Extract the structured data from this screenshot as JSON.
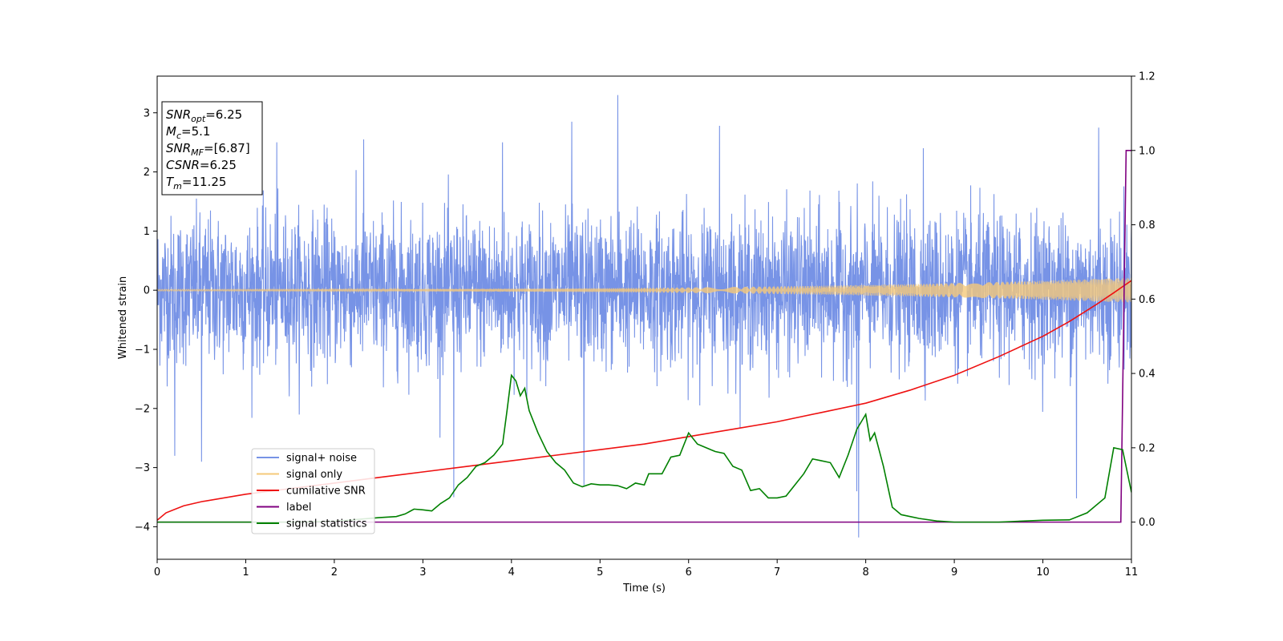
{
  "chart_data": {
    "type": "line",
    "xlabel": "Time (s)",
    "ylabel": "Whitened strain",
    "xlim": [
      0,
      11
    ],
    "ylim": [
      -4.55,
      3.62
    ],
    "y2lim": [
      -0.1,
      1.2
    ],
    "xticks": [
      "0",
      "1",
      "2",
      "3",
      "4",
      "5",
      "6",
      "7",
      "8",
      "9",
      "10",
      "11"
    ],
    "yticks": [
      "−4",
      "−3",
      "−2",
      "−1",
      "0",
      "1",
      "2",
      "3"
    ],
    "y2ticks": [
      "0.0",
      "0.2",
      "0.4",
      "0.6",
      "0.8",
      "1.0",
      "1.2"
    ],
    "legend_position": "lower-left",
    "annotation": {
      "lines": [
        {
          "sym": "SNR",
          "sub": "opt",
          "value": "=6.25"
        },
        {
          "sym": "M",
          "sub": "c",
          "value": "=5.1"
        },
        {
          "sym": "SNR",
          "sub": "MF",
          "value": "=[6.87]"
        },
        {
          "sym": "CSNR",
          "sub": "",
          "value": "=6.25"
        },
        {
          "sym": "T",
          "sub": "m",
          "value": "=11.25"
        }
      ]
    },
    "series": [
      {
        "name": "signal+ noise",
        "color": "#7793e6",
        "axis": "left",
        "kind": "noise",
        "spread": 1.3,
        "extremes": [
          [
            5.2,
            3.3
          ],
          [
            4.68,
            2.85
          ],
          [
            6.35,
            2.78
          ],
          [
            10.63,
            2.75
          ],
          [
            2.33,
            2.55
          ],
          [
            7.92,
            -4.18
          ],
          [
            7.9,
            -3.4
          ],
          [
            10.38,
            -3.52
          ],
          [
            4.82,
            -3.3
          ],
          [
            3.35,
            -3.5
          ],
          [
            0.5,
            -2.9
          ],
          [
            0.2,
            -2.8
          ],
          [
            8.65,
            2.4
          ],
          [
            3.9,
            2.5
          ],
          [
            1.35,
            2.5
          ]
        ]
      },
      {
        "name": "signal only",
        "color": "#f5c97a",
        "axis": "left",
        "kind": "chirp",
        "amp_start": 0.015,
        "amp_end": 0.21
      },
      {
        "name": "cumilative SNR",
        "color": "#ee1111",
        "axis": "right",
        "kind": "line",
        "points": [
          [
            0,
            0.005
          ],
          [
            0.1,
            0.025
          ],
          [
            0.3,
            0.044
          ],
          [
            0.5,
            0.055
          ],
          [
            1,
            0.075
          ],
          [
            1.5,
            0.09
          ],
          [
            2,
            0.105
          ],
          [
            2.5,
            0.12
          ],
          [
            3,
            0.135
          ],
          [
            3.5,
            0.15
          ],
          [
            4,
            0.165
          ],
          [
            4.5,
            0.18
          ],
          [
            5,
            0.195
          ],
          [
            5.5,
            0.21
          ],
          [
            6,
            0.23
          ],
          [
            6.5,
            0.25
          ],
          [
            7,
            0.27
          ],
          [
            7.5,
            0.295
          ],
          [
            8,
            0.32
          ],
          [
            8.5,
            0.355
          ],
          [
            9,
            0.395
          ],
          [
            9.5,
            0.445
          ],
          [
            10,
            0.5
          ],
          [
            10.3,
            0.54
          ],
          [
            10.6,
            0.585
          ],
          [
            10.8,
            0.617
          ],
          [
            11,
            0.65
          ]
        ]
      },
      {
        "name": "label",
        "color": "#800080",
        "axis": "right",
        "kind": "line",
        "points": [
          [
            0,
            0
          ],
          [
            10.88,
            0
          ],
          [
            10.94,
            1.0
          ],
          [
            11,
            1.0
          ]
        ]
      },
      {
        "name": "signal statistics",
        "color": "#008000",
        "axis": "right",
        "kind": "line",
        "points": [
          [
            0,
            0
          ],
          [
            1.5,
            0
          ],
          [
            2,
            0.002
          ],
          [
            2.5,
            0.012
          ],
          [
            2.7,
            0.015
          ],
          [
            2.8,
            0.022
          ],
          [
            2.9,
            0.035
          ],
          [
            3.0,
            0.033
          ],
          [
            3.1,
            0.03
          ],
          [
            3.2,
            0.05
          ],
          [
            3.3,
            0.065
          ],
          [
            3.4,
            0.1
          ],
          [
            3.5,
            0.12
          ],
          [
            3.6,
            0.15
          ],
          [
            3.7,
            0.16
          ],
          [
            3.8,
            0.18
          ],
          [
            3.9,
            0.21
          ],
          [
            3.95,
            0.3
          ],
          [
            4.0,
            0.395
          ],
          [
            4.05,
            0.38
          ],
          [
            4.1,
            0.34
          ],
          [
            4.15,
            0.36
          ],
          [
            4.2,
            0.3
          ],
          [
            4.3,
            0.24
          ],
          [
            4.4,
            0.19
          ],
          [
            4.5,
            0.16
          ],
          [
            4.6,
            0.14
          ],
          [
            4.7,
            0.105
          ],
          [
            4.8,
            0.095
          ],
          [
            4.9,
            0.103
          ],
          [
            5.0,
            0.1
          ],
          [
            5.1,
            0.1
          ],
          [
            5.2,
            0.098
          ],
          [
            5.3,
            0.09
          ],
          [
            5.4,
            0.105
          ],
          [
            5.5,
            0.1
          ],
          [
            5.55,
            0.13
          ],
          [
            5.7,
            0.13
          ],
          [
            5.8,
            0.175
          ],
          [
            5.9,
            0.18
          ],
          [
            6.0,
            0.24
          ],
          [
            6.1,
            0.21
          ],
          [
            6.2,
            0.2
          ],
          [
            6.3,
            0.19
          ],
          [
            6.4,
            0.185
          ],
          [
            6.5,
            0.15
          ],
          [
            6.6,
            0.14
          ],
          [
            6.7,
            0.085
          ],
          [
            6.8,
            0.09
          ],
          [
            6.9,
            0.065
          ],
          [
            7.0,
            0.065
          ],
          [
            7.1,
            0.07
          ],
          [
            7.2,
            0.1
          ],
          [
            7.3,
            0.13
          ],
          [
            7.4,
            0.17
          ],
          [
            7.5,
            0.165
          ],
          [
            7.6,
            0.16
          ],
          [
            7.7,
            0.12
          ],
          [
            7.8,
            0.18
          ],
          [
            7.9,
            0.25
          ],
          [
            8.0,
            0.29
          ],
          [
            8.05,
            0.22
          ],
          [
            8.1,
            0.24
          ],
          [
            8.2,
            0.15
          ],
          [
            8.3,
            0.04
          ],
          [
            8.4,
            0.02
          ],
          [
            8.6,
            0.01
          ],
          [
            8.8,
            0.003
          ],
          [
            9.0,
            0
          ],
          [
            9.5,
            0
          ],
          [
            10.0,
            0.005
          ],
          [
            10.3,
            0.006
          ],
          [
            10.5,
            0.025
          ],
          [
            10.7,
            0.065
          ],
          [
            10.8,
            0.2
          ],
          [
            10.9,
            0.195
          ],
          [
            11.0,
            0.08
          ]
        ]
      }
    ]
  }
}
